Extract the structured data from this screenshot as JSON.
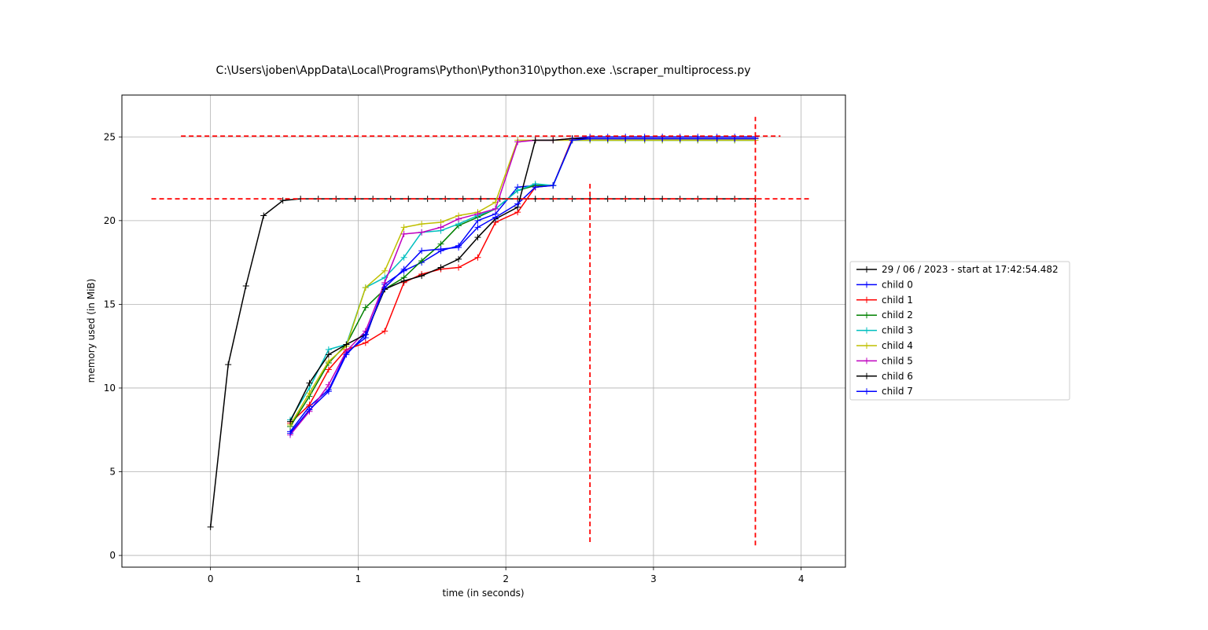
{
  "chart_data": {
    "type": "line",
    "title": "C:\\Users\\joben\\AppData\\Local\\Programs\\Python\\Python310\\python.exe .\\scraper_multiprocess.py",
    "xlabel": "time (in seconds)",
    "ylabel": "memory used (in MiB)",
    "xlim": [
      -0.6,
      4.3
    ],
    "ylim": [
      -0.7,
      27.5
    ],
    "xticks": [
      0,
      1,
      2,
      3,
      4
    ],
    "yticks": [
      0,
      5,
      10,
      15,
      20,
      25
    ],
    "grid": true,
    "legend_position": "right-outside",
    "series": [
      {
        "name": "29 / 06 / 2023 - start at 17:42:54.482",
        "color": "#000000",
        "x": [
          0,
          0.12,
          0.24,
          0.36,
          0.49,
          0.61,
          0.73,
          0.85,
          0.98,
          1.1,
          1.22,
          1.34,
          1.47,
          1.59,
          1.71,
          1.83,
          1.96,
          2.08,
          2.2,
          2.32,
          2.45,
          2.57,
          2.69,
          2.81,
          2.94,
          3.06,
          3.18,
          3.3,
          3.43,
          3.55,
          3.69
        ],
        "y": [
          1.7,
          11.4,
          16.1,
          20.3,
          21.2,
          21.3,
          21.3,
          21.3,
          21.3,
          21.3,
          21.3,
          21.3,
          21.3,
          21.3,
          21.3,
          21.3,
          21.3,
          21.3,
          21.3,
          21.3,
          21.3,
          21.3,
          21.3,
          21.3,
          21.3,
          21.3,
          21.3,
          21.3,
          21.3,
          21.3,
          21.3
        ]
      },
      {
        "name": "child 0",
        "color": "#0000ff",
        "x": [
          0.54,
          0.67,
          0.8,
          0.92,
          1.05,
          1.18,
          1.31,
          1.43,
          1.56,
          1.68,
          1.81,
          1.93,
          2.08,
          2.2,
          2.32,
          2.45,
          2.57,
          2.69,
          2.81,
          2.94,
          3.06,
          3.18,
          3.3,
          3.43,
          3.55,
          3.69
        ],
        "y": [
          7.4,
          8.9,
          9.9,
          12.1,
          13.0,
          16.2,
          17.0,
          17.5,
          18.2,
          18.5,
          20.0,
          20.4,
          22.0,
          22.1,
          22.1,
          24.9,
          25.0,
          25.0,
          25.0,
          25.0,
          25.0,
          25.0,
          25.0,
          25.0,
          25.0,
          25.0
        ]
      },
      {
        "name": "child 1",
        "color": "#ff0000",
        "x": [
          0.54,
          0.67,
          0.8,
          0.92,
          1.05,
          1.18,
          1.31,
          1.43,
          1.56,
          1.68,
          1.81,
          1.93,
          2.08,
          2.2,
          2.32,
          2.45,
          2.57,
          2.69,
          2.81,
          2.94,
          3.06,
          3.18,
          3.3,
          3.43,
          3.55,
          3.69
        ],
        "y": [
          7.9,
          9.0,
          11.1,
          12.3,
          12.7,
          13.4,
          16.3,
          16.8,
          17.1,
          17.2,
          17.8,
          19.9,
          20.5,
          22.0,
          22.1,
          24.9,
          24.9,
          24.9,
          24.9,
          24.9,
          24.9,
          24.9,
          24.9,
          24.9,
          24.9,
          24.9
        ]
      },
      {
        "name": "child 2",
        "color": "#008000",
        "x": [
          0.54,
          0.67,
          0.8,
          0.92,
          1.05,
          1.18,
          1.31,
          1.43,
          1.56,
          1.68,
          1.81,
          1.93,
          2.08,
          2.2,
          2.32,
          2.45,
          2.57,
          2.69,
          2.81,
          2.94,
          3.06,
          3.18,
          3.3,
          3.43,
          3.55,
          3.69
        ],
        "y": [
          7.7,
          9.5,
          11.5,
          12.6,
          14.8,
          15.9,
          16.6,
          17.6,
          18.6,
          19.7,
          20.2,
          20.7,
          21.8,
          22.1,
          22.1,
          24.8,
          24.8,
          24.8,
          24.8,
          24.8,
          24.8,
          24.8,
          24.8,
          24.8,
          24.8,
          24.8
        ]
      },
      {
        "name": "child 3",
        "color": "#00bfbf",
        "x": [
          0.54,
          0.67,
          0.8,
          0.92,
          1.05,
          1.18,
          1.31,
          1.43,
          1.56,
          1.68,
          1.81,
          1.93,
          2.08,
          2.2,
          2.32,
          2.45,
          2.57,
          2.69,
          2.81,
          2.94,
          3.06,
          3.18,
          3.3,
          3.43,
          3.55,
          3.69
        ],
        "y": [
          8.1,
          10.0,
          12.3,
          12.6,
          16.0,
          16.6,
          17.8,
          19.3,
          19.4,
          19.8,
          20.3,
          20.7,
          21.8,
          22.2,
          22.1,
          24.8,
          24.8,
          24.8,
          24.8,
          24.8,
          24.8,
          24.8,
          24.8,
          24.8,
          24.8,
          24.8
        ]
      },
      {
        "name": "child 4",
        "color": "#bfbf00",
        "x": [
          0.54,
          0.67,
          0.8,
          0.92,
          1.05,
          1.18,
          1.31,
          1.43,
          1.56,
          1.68,
          1.81,
          1.93,
          2.08,
          2.2,
          2.32,
          2.45,
          2.57,
          2.69,
          2.81,
          2.94,
          3.06,
          3.18,
          3.3,
          3.43,
          3.55,
          3.69
        ],
        "y": [
          7.8,
          9.7,
          11.6,
          12.5,
          16.0,
          17.0,
          19.6,
          19.8,
          19.9,
          20.3,
          20.5,
          21.1,
          24.8,
          24.8,
          24.8,
          24.8,
          24.8,
          24.8,
          24.8,
          24.8,
          24.8,
          24.8,
          24.8,
          24.8,
          24.8,
          24.8
        ]
      },
      {
        "name": "child 5",
        "color": "#bf00bf",
        "x": [
          0.54,
          0.67,
          0.8,
          0.92,
          1.05,
          1.18,
          1.31,
          1.43,
          1.56,
          1.68,
          1.81,
          1.93,
          2.08,
          2.2,
          2.32,
          2.45,
          2.57,
          2.69,
          2.81,
          2.94,
          3.06,
          3.18,
          3.3,
          3.43,
          3.55,
          3.69
        ],
        "y": [
          7.2,
          8.6,
          10.2,
          12.2,
          13.4,
          16.3,
          19.2,
          19.3,
          19.6,
          20.1,
          20.4,
          20.7,
          24.7,
          24.8,
          24.8,
          24.9,
          24.9,
          24.9,
          24.9,
          24.9,
          24.9,
          24.9,
          24.9,
          24.9,
          24.9,
          24.9
        ]
      },
      {
        "name": "child 6",
        "color": "#000000",
        "x": [
          0.54,
          0.67,
          0.8,
          0.92,
          1.05,
          1.18,
          1.31,
          1.43,
          1.56,
          1.68,
          1.81,
          1.93,
          2.08,
          2.2,
          2.32,
          2.45,
          2.57,
          2.69,
          2.81,
          2.94,
          3.06,
          3.18,
          3.3,
          3.43,
          3.55,
          3.69
        ],
        "y": [
          8.0,
          10.3,
          12.0,
          12.6,
          13.2,
          15.9,
          16.4,
          16.7,
          17.2,
          17.7,
          19.0,
          20.1,
          20.8,
          24.8,
          24.8,
          24.9,
          24.9,
          24.9,
          24.9,
          24.9,
          24.9,
          24.9,
          24.9,
          24.9,
          24.9,
          24.9
        ]
      },
      {
        "name": "child 7",
        "color": "#0000ff",
        "x": [
          0.54,
          0.67,
          0.8,
          0.92,
          1.05,
          1.18,
          1.31,
          1.43,
          1.56,
          1.68,
          1.81,
          1.93,
          2.08,
          2.2,
          2.32,
          2.45,
          2.57,
          2.69,
          2.81,
          2.94,
          3.06,
          3.18,
          3.3,
          3.43,
          3.55,
          3.69
        ],
        "y": [
          7.3,
          8.7,
          9.8,
          12.0,
          13.2,
          16.0,
          17.1,
          18.2,
          18.3,
          18.4,
          19.6,
          20.2,
          21.0,
          22.0,
          22.1,
          24.8,
          24.9,
          24.9,
          24.9,
          24.9,
          24.9,
          24.9,
          24.9,
          24.9,
          24.9,
          24.9
        ]
      }
    ],
    "reference_lines": [
      {
        "orientation": "horizontal",
        "y": 25.05,
        "x_from": -0.2,
        "x_to": 3.86,
        "color": "#ff0000",
        "style": "dashed"
      },
      {
        "orientation": "horizontal",
        "y": 21.3,
        "x_from": -0.4,
        "x_to": 4.07,
        "color": "#ff0000",
        "style": "dashed"
      },
      {
        "orientation": "vertical",
        "x": 2.57,
        "y_from": 0.8,
        "y_to": 22.3,
        "color": "#ff0000",
        "style": "dashed"
      },
      {
        "orientation": "vertical",
        "x": 3.69,
        "y_from": 0.6,
        "y_to": 26.2,
        "color": "#ff0000",
        "style": "dashed"
      }
    ]
  }
}
